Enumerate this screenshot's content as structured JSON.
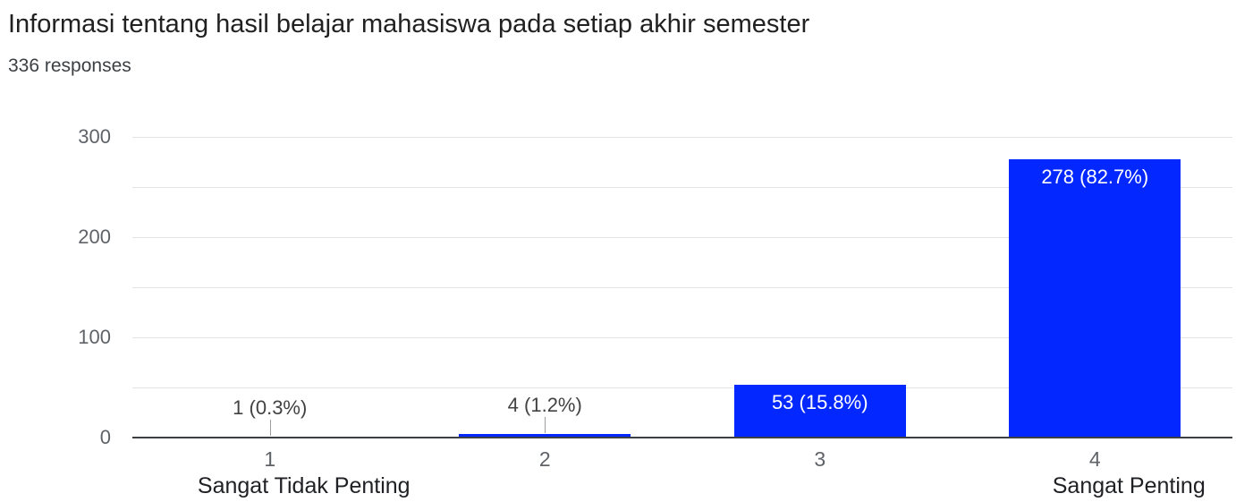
{
  "header": {
    "title": "Informasi tentang hasil belajar mahasiswa pada setiap akhir semester",
    "responses": "336 responses"
  },
  "chart_data": {
    "type": "bar",
    "title": "Informasi tentang hasil belajar mahasiswa pada setiap akhir semester",
    "subtitle": "336 responses",
    "categories": [
      "1",
      "2",
      "3",
      "4"
    ],
    "category_sublabels": [
      "Sangat Tidak Penting",
      "",
      "",
      "Sangat Penting"
    ],
    "values": [
      1,
      4,
      53,
      278
    ],
    "value_labels": [
      "1 (0.3%)",
      "4 (1.2%)",
      "53 (15.8%)",
      "278 (82.7%)"
    ],
    "total_responses": 336,
    "xlabel": "",
    "ylabel": "",
    "ylim": [
      0,
      300
    ],
    "yticks": [
      0,
      100,
      200,
      300
    ],
    "grid_step": 50,
    "grid": true,
    "legend": "none",
    "bar_color": "#0328ff",
    "value_label_inside_color": "#ffffff",
    "value_label_outside_color": "#424242"
  }
}
